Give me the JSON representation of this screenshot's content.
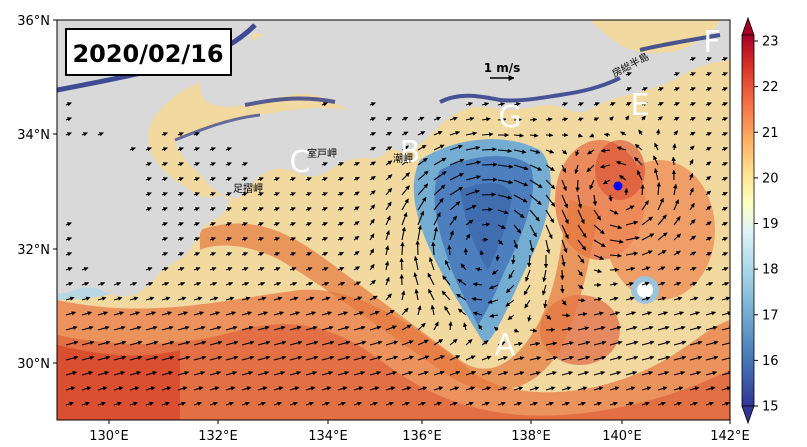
{
  "date_label": "2020/02/16",
  "scale": {
    "label": "1 m/s"
  },
  "region_labels": [
    "A",
    "B",
    "C",
    "E",
    "F",
    "G"
  ],
  "place_labels": [
    "室戸岬",
    "潮岬",
    "足摺岬",
    "房総半島"
  ],
  "lat_ticks": [
    "36°N",
    "34°N",
    "32°N",
    "30°N"
  ],
  "lon_ticks": [
    "130°E",
    "132°E",
    "134°E",
    "136°E",
    "138°E",
    "140°E",
    "142°E"
  ],
  "colorbar": {
    "ticks": [
      "23",
      "22",
      "21",
      "20",
      "19",
      "18",
      "17",
      "16",
      "15"
    ],
    "min": 15,
    "max": 23,
    "colors": [
      "#313695",
      "#4575b4",
      "#74add1",
      "#abd9e9",
      "#e0f3f8",
      "#ffffbf",
      "#fee090",
      "#fdae61",
      "#f46d43",
      "#d73027",
      "#a50026"
    ]
  },
  "colors": {
    "land": "#d9d9d9",
    "coast_cold": "#26317a",
    "vector": "#000000",
    "label_white": "#ffffff",
    "marker": "#0000ff"
  }
}
